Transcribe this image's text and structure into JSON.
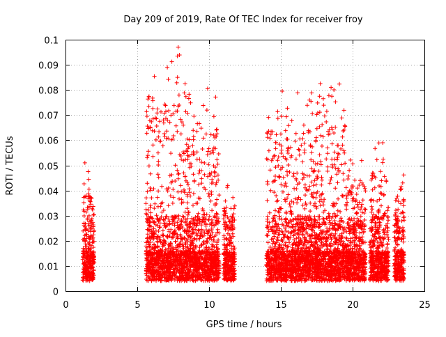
{
  "chart_data": {
    "type": "scatter",
    "title": "Day 209 of 2019, Rate Of TEC Index for receiver froy",
    "xlabel": "GPS time / hours",
    "ylabel": "ROTI / TECUs",
    "xlim": [
      0,
      25
    ],
    "ylim": [
      0,
      0.1
    ],
    "x_ticks": [
      0,
      5,
      10,
      15,
      20,
      25
    ],
    "x_tick_labels": [
      "0",
      "5",
      "10",
      "15",
      "20",
      "25"
    ],
    "y_ticks": [
      0,
      0.01,
      0.02,
      0.03,
      0.04,
      0.05,
      0.06,
      0.07,
      0.08,
      0.09,
      0.1
    ],
    "y_tick_labels": [
      "0",
      "0.01",
      "0.02",
      "0.03",
      "0.04",
      "0.05",
      "0.06",
      "0.07",
      "0.08",
      "0.09",
      "0.1"
    ],
    "grid": true,
    "marker": "+",
    "color": "#ff0000",
    "clusters": [
      {
        "x_range": [
          1.2,
          2.0
        ],
        "y_max": 0.051
      },
      {
        "x_range": [
          5.6,
          8.6
        ],
        "y_max": 0.097
      },
      {
        "x_range": [
          8.6,
          10.7
        ],
        "y_max": 0.081
      },
      {
        "x_range": [
          11.0,
          11.8
        ],
        "y_max": 0.042
      },
      {
        "x_range": [
          14.0,
          17.0
        ],
        "y_max": 0.08
      },
      {
        "x_range": [
          17.0,
          19.5
        ],
        "y_max": 0.083
      },
      {
        "x_range": [
          19.5,
          20.9
        ],
        "y_max": 0.054
      },
      {
        "x_range": [
          21.2,
          22.5
        ],
        "y_max": 0.059
      },
      {
        "x_range": [
          22.9,
          23.6
        ],
        "y_max": 0.051
      }
    ],
    "peaks": [
      {
        "x": 7.85,
        "y": 0.097
      },
      {
        "x": 7.8,
        "y": 0.0935
      },
      {
        "x": 7.8,
        "y": 0.085
      },
      {
        "x": 7.7,
        "y": 0.0715
      },
      {
        "x": 9.9,
        "y": 0.0805
      },
      {
        "x": 9.85,
        "y": 0.072
      },
      {
        "x": 9.8,
        "y": 0.0625
      },
      {
        "x": 15.1,
        "y": 0.0795
      },
      {
        "x": 15.05,
        "y": 0.0695
      },
      {
        "x": 15.0,
        "y": 0.0625
      },
      {
        "x": 16.6,
        "y": 0.066
      },
      {
        "x": 17.75,
        "y": 0.0825
      },
      {
        "x": 17.7,
        "y": 0.0775
      },
      {
        "x": 18.2,
        "y": 0.0715
      },
      {
        "x": 18.5,
        "y": 0.081
      },
      {
        "x": 18.55,
        "y": 0.0775
      },
      {
        "x": 18.3,
        "y": 0.0635
      },
      {
        "x": 22.1,
        "y": 0.059
      },
      {
        "x": 1.35,
        "y": 0.051
      },
      {
        "x": 11.3,
        "y": 0.042
      },
      {
        "x": 10.3,
        "y": 0.055
      }
    ]
  }
}
